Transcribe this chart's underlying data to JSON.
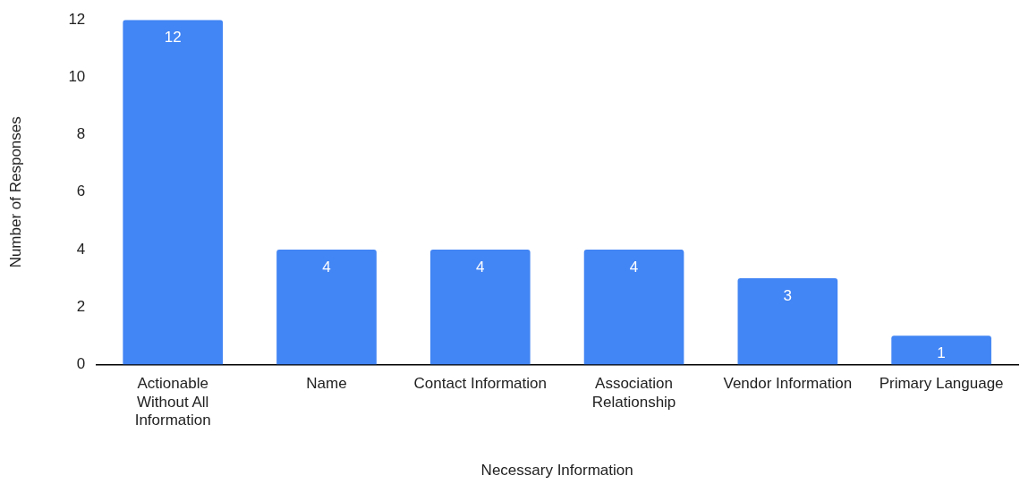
{
  "chart_data": {
    "type": "bar",
    "xlabel": "Necessary Information",
    "ylabel": "Number of Responses",
    "categories": [
      "Actionable Without All Information",
      "Name",
      "Contact Information",
      "Association Relationship",
      "Vendor Information",
      "Primary Language"
    ],
    "values": [
      12,
      4,
      4,
      4,
      3,
      1
    ],
    "color": "#4285f4",
    "ylim": [
      0,
      12
    ],
    "yticks": [
      0,
      2,
      4,
      6,
      8,
      10,
      12
    ],
    "grid": false,
    "legend": false,
    "data_labels": true
  }
}
